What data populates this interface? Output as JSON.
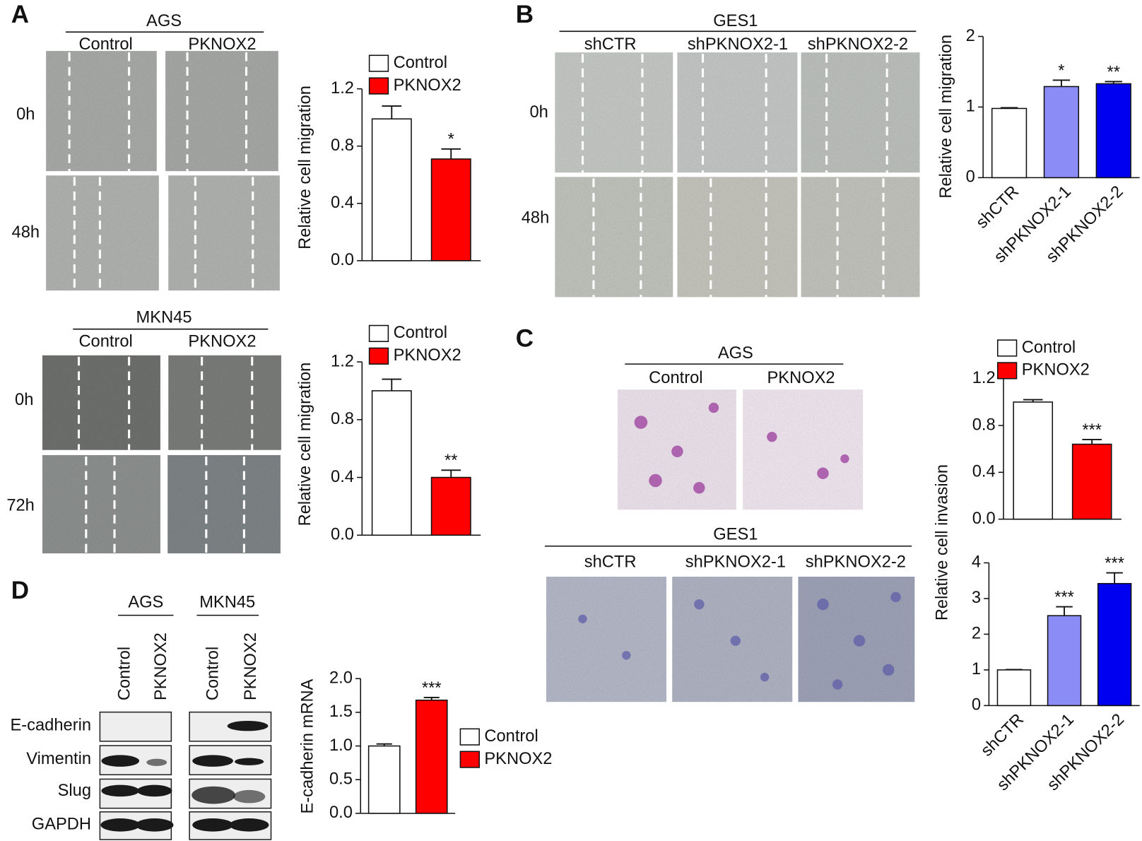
{
  "figure": {
    "panels": [
      "A",
      "B",
      "C",
      "D"
    ],
    "a_top": {
      "cell_line": "AGS",
      "groups": [
        "Control",
        "PKNOX2"
      ],
      "times": [
        "0h",
        "48h"
      ]
    },
    "a_bottom": {
      "cell_line": "MKN45",
      "groups": [
        "Control",
        "PKNOX2"
      ],
      "times": [
        "0h",
        "72h"
      ]
    },
    "b": {
      "cell_line": "GES1",
      "groups": [
        "shCTR",
        "shPKNOX2-1",
        "shPKNOX2-2"
      ],
      "times": [
        "0h",
        "48h"
      ]
    },
    "c_top": {
      "cell_line": "AGS",
      "groups": [
        "Control",
        "PKNOX2"
      ]
    },
    "c_bottom": {
      "cell_line": "GES1",
      "groups": [
        "shCTR",
        "shPKNOX2-1",
        "shPKNOX2-2"
      ]
    },
    "d_blot": {
      "cell_lines": [
        "AGS",
        "MKN45"
      ],
      "lanes": [
        "Control",
        "PKNOX2",
        "Control",
        "PKNOX2"
      ],
      "proteins": [
        "E-cadherin",
        "Vimentin",
        "Slug",
        "GAPDH"
      ]
    }
  },
  "chart_data": [
    {
      "type": "bar",
      "ylabel": "Relative cell migration",
      "legend": "top",
      "series": [
        {
          "name": "Control",
          "color": "#ffffff",
          "values": [
            0.99
          ],
          "errors": [
            0.09
          ],
          "significance": [
            null
          ]
        },
        {
          "name": "PKNOX2",
          "color": "#ff0000",
          "values": [
            0.71
          ],
          "errors": [
            0.07
          ],
          "significance": [
            "*"
          ]
        }
      ],
      "ylim": [
        0,
        1.2
      ],
      "yticks": [
        {
          "value": 0,
          "label": "0.0"
        },
        0.4,
        0.8,
        1.2
      ]
    },
    {
      "type": "bar",
      "ylabel": "Relative cell migration",
      "legend": "top",
      "series": [
        {
          "name": "Control",
          "color": "#ffffff",
          "values": [
            1.0
          ],
          "errors": [
            0.08
          ],
          "significance": [
            null
          ]
        },
        {
          "name": "PKNOX2",
          "color": "#ff0000",
          "values": [
            0.4
          ],
          "errors": [
            0.05
          ],
          "significance": [
            "**"
          ]
        }
      ],
      "ylim": [
        0,
        1.2
      ],
      "yticks": [
        {
          "value": 0,
          "label": "0.0"
        },
        0.4,
        0.8,
        1.2
      ]
    },
    {
      "type": "bar",
      "ylabel": "Relative cell migration",
      "categories": [
        "shCTR",
        "shPKNOX2-1",
        "shPKNOX2-2"
      ],
      "values": [
        0.98,
        1.29,
        1.33
      ],
      "errors": [
        0.01,
        0.09,
        0.03
      ],
      "significance": [
        null,
        "*",
        "**"
      ],
      "colors": [
        "#ffffff",
        "#8c8cf7",
        "#0000f0"
      ],
      "ylim": [
        0,
        2
      ],
      "yticks": [
        0,
        1,
        2
      ]
    },
    {
      "type": "bar",
      "ylabel": "Relative cell invasion",
      "legend": "top",
      "series": [
        {
          "name": "Control",
          "color": "#ffffff",
          "values": [
            1.0
          ],
          "errors": [
            0.02
          ],
          "significance": [
            null
          ]
        },
        {
          "name": "PKNOX2",
          "color": "#ff0000",
          "values": [
            0.64
          ],
          "errors": [
            0.04
          ],
          "significance": [
            "***"
          ]
        }
      ],
      "ylim": [
        0,
        1.2
      ],
      "yticks": [
        {
          "value": 0,
          "label": "0.0"
        },
        0.4,
        0.8,
        1.2
      ]
    },
    {
      "type": "bar",
      "categories": [
        "shCTR",
        "shPKNOX2-1",
        "shPKNOX2-2"
      ],
      "values": [
        1.0,
        2.52,
        3.42
      ],
      "errors": [
        0.01,
        0.25,
        0.3
      ],
      "significance": [
        null,
        "***",
        "***"
      ],
      "colors": [
        "#ffffff",
        "#8c8cf7",
        "#0000f0"
      ],
      "ylim": [
        0,
        4
      ],
      "yticks": [
        0,
        1,
        2,
        3,
        4
      ]
    },
    {
      "type": "bar",
      "ylabel": "E-cadherin mRNA",
      "legend": "right",
      "series": [
        {
          "name": "Control",
          "color": "#ffffff",
          "values": [
            1.0
          ],
          "errors": [
            0.03
          ],
          "significance": [
            null
          ]
        },
        {
          "name": "PKNOX2",
          "color": "#ff0000",
          "values": [
            1.68
          ],
          "errors": [
            0.04
          ],
          "significance": [
            "***"
          ]
        }
      ],
      "ylim": [
        0,
        2
      ],
      "yticks": [
        {
          "value": 0,
          "label": "0.0"
        },
        0.5,
        {
          "value": 1,
          "label": "1.0"
        },
        1.5,
        {
          "value": 2,
          "label": "2.0"
        }
      ]
    }
  ]
}
